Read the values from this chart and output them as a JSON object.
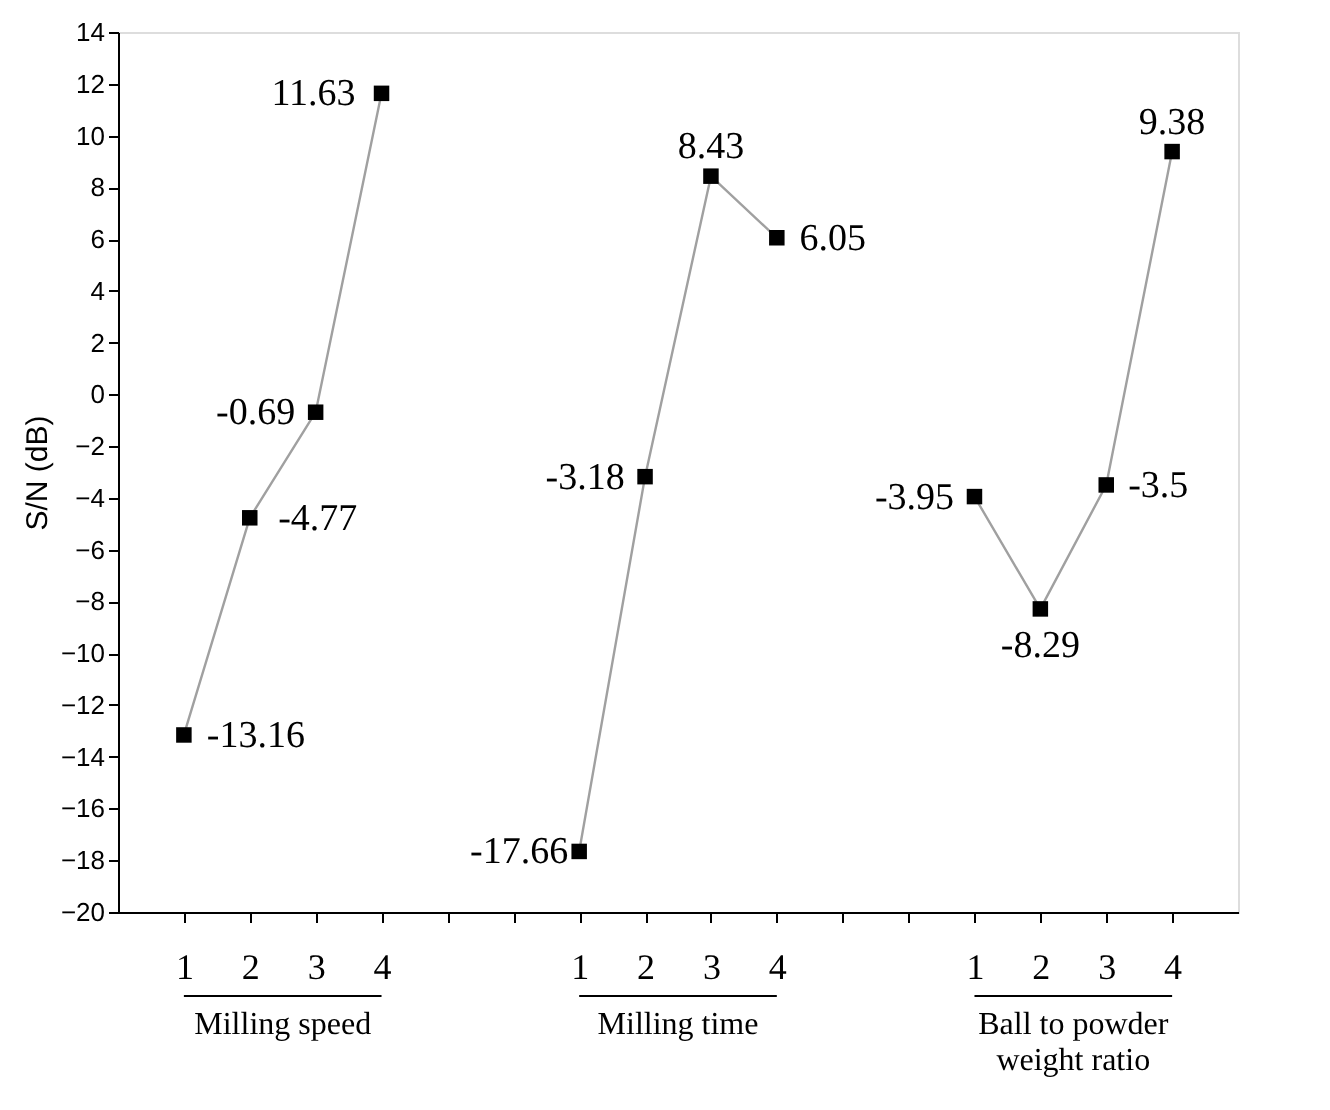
{
  "chart_data": {
    "type": "line",
    "ylabel": "S/N (dB)",
    "categories": [
      "1",
      "2",
      "3",
      "4",
      null,
      null,
      "1",
      "2",
      "3",
      "4",
      null,
      null,
      "1",
      "2",
      "3",
      "4"
    ],
    "series": [
      {
        "color": "#000000",
        "values": [
          -13.16,
          -4.77,
          -0.69,
          11.63,
          null,
          null,
          -17.66,
          -3.18,
          8.43,
          6.05,
          null,
          null,
          -3.95,
          -8.29,
          -3.5,
          9.38
        ]
      }
    ],
    "ylim": [
      -20,
      14
    ],
    "yticks": [
      -20,
      -18,
      -16,
      -14,
      -12,
      -10,
      -8,
      -6,
      -4,
      -2,
      0,
      2,
      4,
      6,
      8,
      10,
      12,
      14
    ],
    "marker": "square",
    "line_style": "solid",
    "grid": false,
    "legend": false,
    "data_labels": true,
    "annotations": [
      "Milling  speed",
      "Milling time",
      "Ball to powder weight ratio"
    ]
  }
}
